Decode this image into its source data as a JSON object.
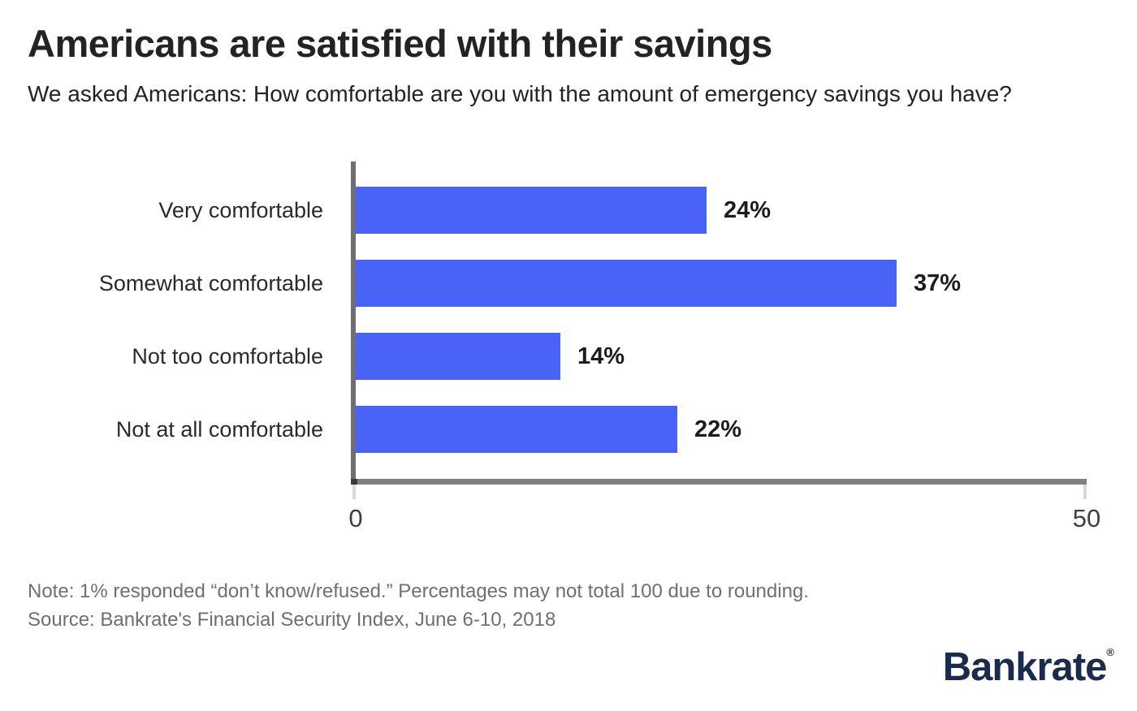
{
  "header": {
    "title": "Americans are satisfied with their savings",
    "subtitle": "We asked Americans: How comfortable are you with the amount of emergency savings you have?"
  },
  "chart_data": {
    "type": "bar",
    "orientation": "horizontal",
    "categories": [
      "Very comfortable",
      "Somewhat comfortable",
      "Not too comfortable",
      "Not at all comfortable"
    ],
    "values": [
      24,
      37,
      14,
      22
    ],
    "value_labels": [
      "24%",
      "37%",
      "14%",
      "22%"
    ],
    "xlim": [
      0,
      50
    ],
    "xticks": [
      0,
      50
    ],
    "xtick_labels": [
      "0",
      "50"
    ],
    "grid": false,
    "legend": "none",
    "bar_color": "#4a63f7",
    "y_axis_color": "#6e6e74",
    "x_axis_color": "#7e7e83",
    "tick_mark_color": "#d8d8d8"
  },
  "footer": {
    "note": "Note: 1% responded “don’t know/refused.” Percentages may not total 100 due to rounding.",
    "source": "Source: Bankrate's Financial Security Index, June 6-10, 2018"
  },
  "brand": {
    "logo_text": "Bankrate",
    "registered_mark": "®",
    "logo_color": "#1b2b4d"
  }
}
